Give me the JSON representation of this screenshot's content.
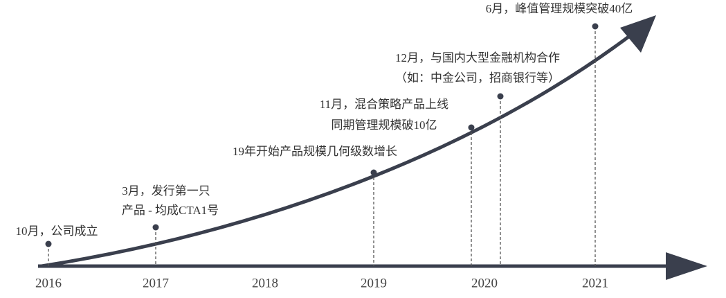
{
  "timeline": {
    "years": [
      "2016",
      "2017",
      "2018",
      "2019",
      "2020",
      "2021"
    ],
    "events": [
      {
        "lines": [
          "10月，公司成立"
        ]
      },
      {
        "lines": [
          "3月，发行第一只",
          "产品 - 均成CTA1号"
        ]
      },
      {
        "lines": [
          "19年开始产品规模几何级数增长"
        ]
      },
      {
        "lines": [
          "11月，混合策略产品上线",
          "同期管理规模破10亿"
        ]
      },
      {
        "lines": [
          "12月，与国内大型金融机构合作",
          "（如：中金公司，招商银行等）"
        ]
      },
      {
        "lines": [
          "6月，峰值管理规模突破40亿"
        ]
      }
    ]
  }
}
